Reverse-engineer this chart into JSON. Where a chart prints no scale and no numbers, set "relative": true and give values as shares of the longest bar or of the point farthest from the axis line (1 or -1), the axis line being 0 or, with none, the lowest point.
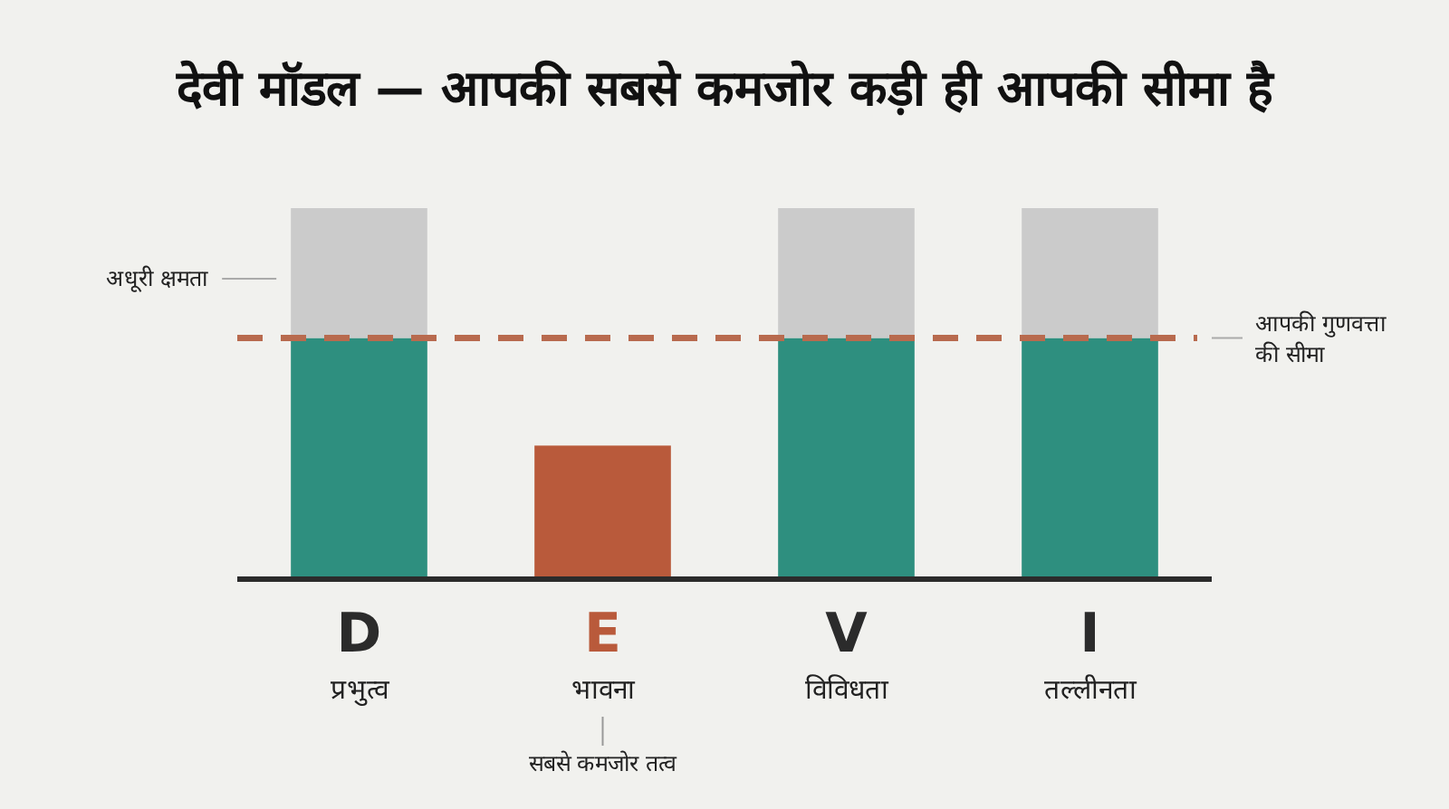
{
  "chart_data": {
    "type": "bar",
    "stacked": true,
    "relative": true,
    "title": "देवी मॉडल — आपकी सबसे कमजोर कड़ी ही आपकी सीमा है",
    "categories": [
      "D\nप्रभुत्व",
      "E\nभावना",
      "V\nविविधता",
      "I\nतल्लीनता"
    ],
    "series": [
      {
        "colors": [
          "#2e8f7f",
          "#b95a3b",
          "#2e8f7f",
          "#2e8f7f"
        ],
        "values": [
          0.65,
          0.36,
          0.65,
          0.65
        ]
      },
      {
        "color": "#cbcbcb",
        "values": [
          0.35,
          null,
          0.35,
          0.35
        ]
      }
    ],
    "ref_lines": [
      {
        "axis": "y",
        "value": 0.65,
        "label": "आपकी गुणवत्ता की सीमा",
        "color": "#b86a4e",
        "line_style": "dashed"
      }
    ],
    "annotations": [
      "अधूरी क्षमता",
      "सबसे कमजोर तत्व"
    ]
  }
}
